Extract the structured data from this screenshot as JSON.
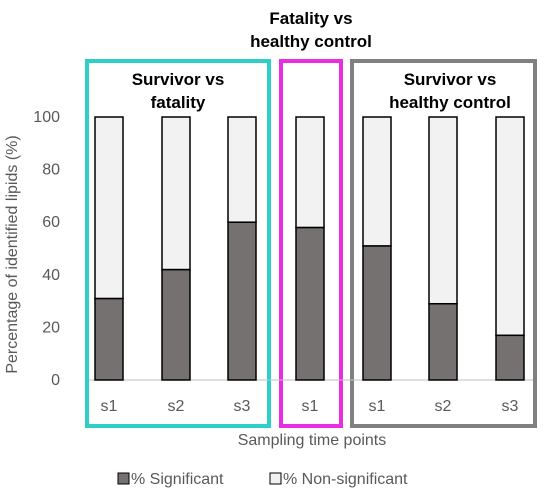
{
  "chart_data": {
    "type": "bar",
    "stacked": true,
    "ylabel": "Percentage of identified lipids (%)",
    "xlabel": "Sampling time points",
    "ylim": [
      0,
      100
    ],
    "yticks": [
      "0",
      "20",
      "40",
      "60",
      "80",
      "100"
    ],
    "categories": [
      "s1",
      "s2",
      "s3",
      "s1",
      "s1",
      "s2",
      "s3"
    ],
    "groups": [
      {
        "title_lines": [
          "Survivor vs",
          "fatality"
        ],
        "color": "#2ecfca",
        "start": 0,
        "count": 3
      },
      {
        "title_lines": [
          "Fatality vs",
          "healthy control"
        ],
        "color": "#e82ee3",
        "start": 3,
        "count": 1
      },
      {
        "title_lines": [
          "Survivor vs",
          "healthy control"
        ],
        "color": "#808080",
        "start": 4,
        "count": 3
      }
    ],
    "series": [
      {
        "name": "% Significant",
        "color": "#767171",
        "values": [
          31,
          42,
          60,
          58,
          51,
          29,
          17
        ]
      },
      {
        "name": "% Non-significant",
        "color": "#f2f2f2",
        "values": [
          69,
          58,
          40,
          42,
          49,
          71,
          83
        ]
      }
    ],
    "legend_position": "bottom",
    "grid": false
  }
}
